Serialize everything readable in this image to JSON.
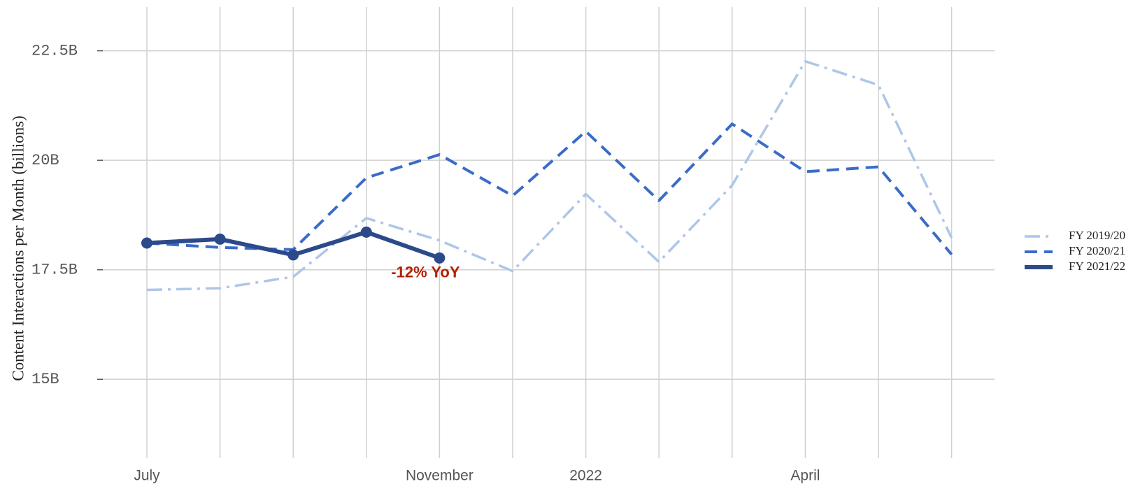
{
  "chart_data": {
    "type": "line",
    "y_axis_label": "Content Interactions per Month (billions)",
    "categories": [
      "July",
      null,
      null,
      null,
      "November",
      null,
      "2022",
      null,
      null,
      "April",
      null,
      null
    ],
    "series": [
      {
        "name": "FY 2019/20",
        "color": "#aec6e8",
        "linestyle": "dashdot",
        "marker": false,
        "values": [
          17.04,
          17.08,
          17.34,
          18.68,
          18.17,
          17.47,
          19.23,
          17.68,
          19.43,
          22.26,
          21.72,
          18.23
        ]
      },
      {
        "name": "FY 2020/21",
        "color": "#3a6cc8",
        "linestyle": "dashed",
        "marker": false,
        "values": [
          18.11,
          18.01,
          17.96,
          19.6,
          20.13,
          19.19,
          20.66,
          19.08,
          20.83,
          19.74,
          19.85,
          17.85
        ]
      },
      {
        "name": "FY 2021/22",
        "color": "#2c4a8a",
        "linestyle": "solid",
        "marker": true,
        "values": [
          18.11,
          18.2,
          17.84,
          18.36,
          17.77,
          null,
          null,
          null,
          null,
          null,
          null,
          null
        ]
      }
    ],
    "annotations": [
      {
        "text": "-12% YoY",
        "series": 2,
        "index": 4
      }
    ],
    "ylim": [
      13.2,
      23.5
    ],
    "yticks": [
      {
        "value": 15,
        "label": "15B"
      },
      {
        "value": 17.5,
        "label": "17.5B"
      },
      {
        "value": 20,
        "label": "20B"
      },
      {
        "value": 22.5,
        "label": "22.5B"
      }
    ],
    "grid": true,
    "legend": "right"
  }
}
